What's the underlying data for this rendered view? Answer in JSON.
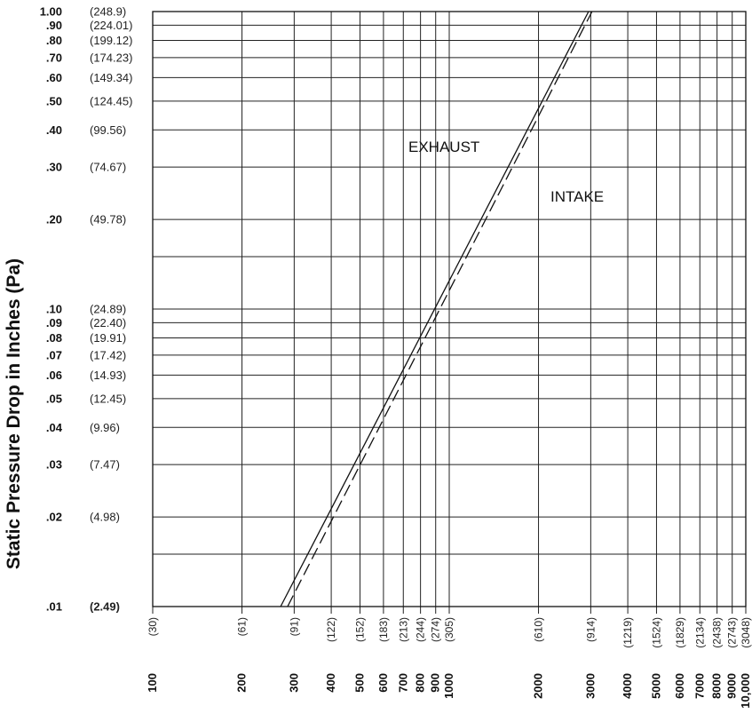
{
  "chart_data": {
    "type": "line",
    "ylabel": "Static Pressure Drop in Inches",
    "ylabel_unit": "(Pa)",
    "y_scale": "log",
    "x_scale": "log",
    "ylim": [
      0.01,
      1.0
    ],
    "xlim": [
      100,
      10000
    ],
    "grid": true,
    "y_ticks": [
      {
        "value": 1.0,
        "label": "1.00",
        "pa": "(248.9)"
      },
      {
        "value": 0.9,
        "label": ".90",
        "pa": "(224.01)"
      },
      {
        "value": 0.8,
        "label": ".80",
        "pa": "(199.12)"
      },
      {
        "value": 0.7,
        "label": ".70",
        "pa": "(174.23)"
      },
      {
        "value": 0.6,
        "label": ".60",
        "pa": "(149.34)"
      },
      {
        "value": 0.5,
        "label": ".50",
        "pa": "(124.45)"
      },
      {
        "value": 0.4,
        "label": ".40",
        "pa": "(99.56)"
      },
      {
        "value": 0.3,
        "label": ".30",
        "pa": "(74.67)"
      },
      {
        "value": 0.2,
        "label": ".20",
        "pa": "(49.78)"
      },
      {
        "value": 0.1,
        "label": ".10",
        "pa": "(24.89)"
      },
      {
        "value": 0.09,
        "label": ".09",
        "pa": "(22.40)"
      },
      {
        "value": 0.08,
        "label": ".08",
        "pa": "(19.91)"
      },
      {
        "value": 0.07,
        "label": ".07",
        "pa": "(17.42)"
      },
      {
        "value": 0.06,
        "label": ".06",
        "pa": "(14.93)"
      },
      {
        "value": 0.05,
        "label": ".05",
        "pa": "(12.45)"
      },
      {
        "value": 0.04,
        "label": ".04",
        "pa": "(9.96)"
      },
      {
        "value": 0.03,
        "label": ".03",
        "pa": "(7.47)"
      },
      {
        "value": 0.02,
        "label": ".02",
        "pa": "(4.98)"
      },
      {
        "value": 0.01,
        "label": ".01",
        "pa": "(2.49)"
      }
    ],
    "x_ticks": [
      {
        "value": 100,
        "label": "100",
        "metric": "(30)"
      },
      {
        "value": 200,
        "label": "200",
        "metric": "(61)"
      },
      {
        "value": 300,
        "label": "300",
        "metric": "(91)"
      },
      {
        "value": 400,
        "label": "400",
        "metric": "(122)"
      },
      {
        "value": 500,
        "label": "500",
        "metric": "(152)"
      },
      {
        "value": 600,
        "label": "600",
        "metric": "(183)"
      },
      {
        "value": 700,
        "label": "700",
        "metric": "(213)"
      },
      {
        "value": 800,
        "label": "800",
        "metric": "(244)"
      },
      {
        "value": 900,
        "label": "900",
        "metric": "(274)"
      },
      {
        "value": 1000,
        "label": "1000",
        "metric": "(305)"
      },
      {
        "value": 2000,
        "label": "2000",
        "metric": "(610)"
      },
      {
        "value": 3000,
        "label": "3000",
        "metric": "(914)"
      },
      {
        "value": 4000,
        "label": "4000",
        "metric": "(1219)"
      },
      {
        "value": 5000,
        "label": "5000",
        "metric": "(1524)"
      },
      {
        "value": 6000,
        "label": "6000",
        "metric": "(1829)"
      },
      {
        "value": 7000,
        "label": "7000",
        "metric": "(2134)"
      },
      {
        "value": 8000,
        "label": "8000",
        "metric": "(2438)"
      },
      {
        "value": 9000,
        "label": "9000",
        "metric": "(2743)"
      },
      {
        "value": 10000,
        "label": "10,000",
        "metric": "(3048)"
      }
    ],
    "y_extra_gridlines": [
      0.15,
      0.015
    ],
    "series": [
      {
        "name": "EXHAUST",
        "style": "solid",
        "color": "#111111",
        "points": [
          [
            270,
            0.01
          ],
          [
            2950,
            1.0
          ]
        ]
      },
      {
        "name": "INTAKE",
        "style": "dashed",
        "color": "#111111",
        "points": [
          [
            285,
            0.01
          ],
          [
            3030,
            1.0
          ]
        ]
      }
    ]
  }
}
